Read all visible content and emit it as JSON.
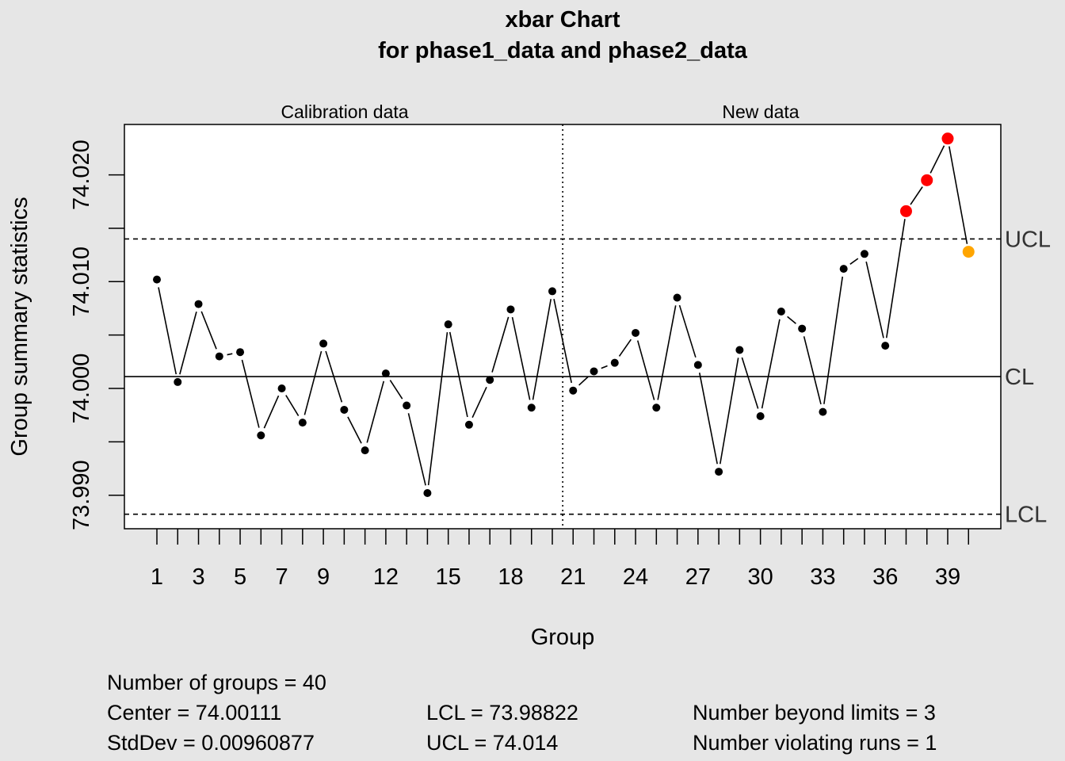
{
  "chart_data": {
    "type": "line",
    "title": "xbar Chart",
    "subtitle": "for phase1_data and phase2_data",
    "xlabel": "Group",
    "ylabel": "Group summary statistics",
    "section_labels": [
      "Calibration data",
      "New data"
    ],
    "x": [
      1,
      2,
      3,
      4,
      5,
      6,
      7,
      8,
      9,
      10,
      11,
      12,
      13,
      14,
      15,
      16,
      17,
      18,
      19,
      20,
      21,
      22,
      23,
      24,
      25,
      26,
      27,
      28,
      29,
      30,
      31,
      32,
      33,
      34,
      35,
      36,
      37,
      38,
      39,
      40
    ],
    "values": [
      74.0102,
      74.0006,
      74.0079,
      74.003,
      74.0034,
      73.9956,
      74.0,
      73.9968,
      74.0042,
      73.998,
      73.9942,
      74.0014,
      73.9984,
      73.9902,
      74.006,
      73.9966,
      74.0008,
      74.0074,
      73.9982,
      74.0091,
      73.9998,
      74.0016,
      74.0024,
      74.0052,
      73.9982,
      74.0085,
      74.0022,
      73.9922,
      74.0036,
      73.9974,
      74.0072,
      74.0056,
      73.9978,
      74.0112,
      74.0126,
      74.004,
      74.0166,
      74.0195,
      74.0234,
      74.0128
    ],
    "point_status": {
      "beyond_limits": [
        37,
        38,
        39
      ],
      "violating_runs": [
        40
      ]
    },
    "calibration_groups": 20,
    "x_tick_labels": [
      "1",
      "3",
      "5",
      "7",
      "9",
      "12",
      "15",
      "18",
      "21",
      "24",
      "27",
      "30",
      "33",
      "36",
      "39"
    ],
    "y_ticks": [
      73.99,
      73.995,
      74.0,
      74.005,
      74.01,
      74.015,
      74.02
    ],
    "y_tick_labels": [
      "73.990",
      "74.000",
      "74.010",
      "74.020"
    ],
    "ylim": [
      73.9852,
      74.025
    ],
    "xlim": [
      -0.5,
      41.6
    ],
    "limits": {
      "CL": 74.00111,
      "UCL": 74.014,
      "LCL": 73.98822
    },
    "limit_labels": [
      "UCL",
      "CL",
      "LCL"
    ],
    "grid": false,
    "colors": {
      "normal": "#000000",
      "beyond_limits": "#ff0000",
      "violating_runs": "#ffa500",
      "background": "#e6e6e6",
      "plot_bg": "#ffffff"
    }
  },
  "stats": {
    "groups": "Number of groups = 40",
    "center": "Center = 74.00111",
    "stddev": "StdDev = 0.00960877",
    "lcl": "LCL = 73.98822",
    "ucl": "UCL = 74.014",
    "beyond": "Number beyond limits = 3",
    "runs": "Number violating runs = 1"
  }
}
